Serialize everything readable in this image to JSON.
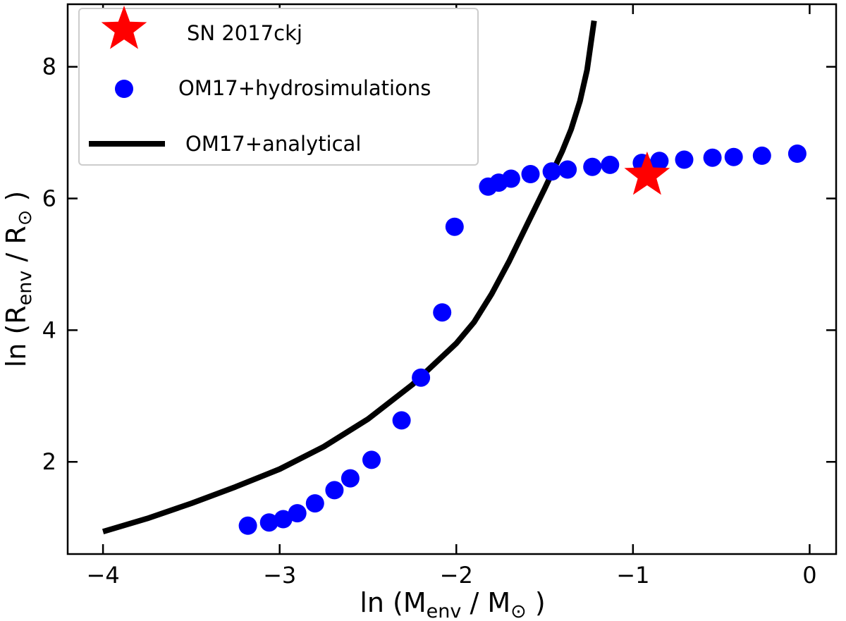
{
  "chart_data": {
    "type": "scatter",
    "title": "",
    "xlabel": {
      "prefix": "ln",
      "num_base": "M",
      "num_sub": "env",
      "den_base": "M",
      "den_sub": "⊙"
    },
    "ylabel": {
      "prefix": "ln",
      "num_base": "R",
      "num_sub": "env",
      "den_base": "R",
      "den_sub": "⊙"
    },
    "xlim": [
      -4.2,
      0.15
    ],
    "ylim": [
      0.6,
      8.95
    ],
    "xticks": [
      -4,
      -3,
      -2,
      -1,
      0
    ],
    "xtick_labels": [
      "−4",
      "−3",
      "−2",
      "−1",
      "0"
    ],
    "yticks": [
      2,
      4,
      6,
      8
    ],
    "ytick_labels": [
      "2",
      "4",
      "6",
      "8"
    ],
    "legend_position": "top-left",
    "series": [
      {
        "name": "SN 2017ckj",
        "kind": "star",
        "color": "#ff0000",
        "points": [
          [
            -0.92,
            6.35
          ]
        ]
      },
      {
        "name": "OM17+hydrosimulations",
        "kind": "dots",
        "color": "#0000ff",
        "points": [
          [
            -3.18,
            1.03
          ],
          [
            -3.06,
            1.08
          ],
          [
            -2.98,
            1.13
          ],
          [
            -2.9,
            1.22
          ],
          [
            -2.8,
            1.37
          ],
          [
            -2.69,
            1.57
          ],
          [
            -2.6,
            1.75
          ],
          [
            -2.48,
            2.03
          ],
          [
            -2.31,
            2.63
          ],
          [
            -2.2,
            3.28
          ],
          [
            -2.08,
            4.27
          ],
          [
            -2.01,
            5.57
          ],
          [
            -1.82,
            6.18
          ],
          [
            -1.76,
            6.24
          ],
          [
            -1.69,
            6.3
          ],
          [
            -1.58,
            6.37
          ],
          [
            -1.46,
            6.41
          ],
          [
            -1.37,
            6.44
          ],
          [
            -1.23,
            6.48
          ],
          [
            -1.13,
            6.51
          ],
          [
            -0.95,
            6.54
          ],
          [
            -0.85,
            6.57
          ],
          [
            -0.71,
            6.59
          ],
          [
            -0.55,
            6.62
          ],
          [
            -0.43,
            6.63
          ],
          [
            -0.27,
            6.65
          ],
          [
            -0.07,
            6.68
          ]
        ]
      },
      {
        "name": "OM17+analytical",
        "kind": "line",
        "color": "#000000",
        "points": [
          [
            -4.0,
            0.94
          ],
          [
            -3.75,
            1.14
          ],
          [
            -3.5,
            1.37
          ],
          [
            -3.25,
            1.62
          ],
          [
            -3.0,
            1.89
          ],
          [
            -2.75,
            2.23
          ],
          [
            -2.5,
            2.65
          ],
          [
            -2.25,
            3.17
          ],
          [
            -2.0,
            3.8
          ],
          [
            -1.9,
            4.12
          ],
          [
            -1.8,
            4.55
          ],
          [
            -1.7,
            5.05
          ],
          [
            -1.6,
            5.6
          ],
          [
            -1.5,
            6.15
          ],
          [
            -1.4,
            6.72
          ],
          [
            -1.35,
            7.05
          ],
          [
            -1.3,
            7.48
          ],
          [
            -1.26,
            7.95
          ],
          [
            -1.22,
            8.7
          ]
        ]
      }
    ]
  }
}
